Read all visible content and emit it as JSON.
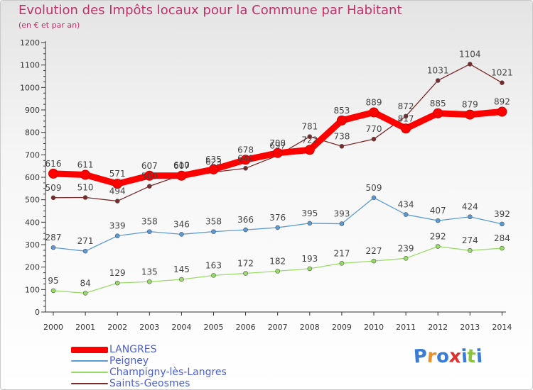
{
  "header": {
    "title": "Evolution des Impôts locaux pour la Commune par Habitant",
    "subtitle": "(en € et par an)"
  },
  "chart_data": {
    "type": "line",
    "title": "Evolution des Impôts locaux pour la Commune par Habitant",
    "subtitle": "(en € et par an)",
    "x": [
      2000,
      2001,
      2002,
      2003,
      2004,
      2005,
      2006,
      2007,
      2008,
      2009,
      2010,
      2011,
      2012,
      2013,
      2014
    ],
    "ylim": [
      0,
      1200
    ],
    "yticks": [
      0,
      100,
      200,
      300,
      400,
      500,
      600,
      700,
      800,
      900,
      1000,
      1100,
      1200
    ],
    "grid": false,
    "legend_position": "bottom-left",
    "series": [
      {
        "name": "LANGRES",
        "color": "#ff0000",
        "values": [
          616,
          611,
          571,
          607,
          607,
          635,
          678,
          708,
          722,
          853,
          889,
          817,
          885,
          879,
          892
        ]
      },
      {
        "name": "Peigney",
        "color": "#5b9bd5",
        "values": [
          287,
          271,
          339,
          358,
          346,
          358,
          366,
          376,
          395,
          393,
          509,
          434,
          407,
          424,
          392
        ]
      },
      {
        "name": "Champigny-lès-Langres",
        "color": "#99dd66",
        "values": [
          95,
          84,
          129,
          135,
          145,
          163,
          172,
          182,
          193,
          217,
          227,
          239,
          292,
          274,
          284
        ]
      },
      {
        "name": "Saints-Geosmes",
        "color": "#7a2a2a",
        "values": [
          509,
          510,
          494,
          560,
          610,
          623,
          640,
          697,
          781,
          738,
          770,
          872,
          1031,
          1104,
          1021
        ]
      }
    ]
  },
  "logo": {
    "letters": [
      "P",
      "r",
      "o",
      "x",
      "i",
      "t",
      "i"
    ],
    "colors": [
      "#3a7bd5",
      "#e8902a",
      "#3a7bd5",
      "#e03030",
      "#3a7bd5",
      "#8ac43f",
      "#3a7bd5"
    ]
  }
}
